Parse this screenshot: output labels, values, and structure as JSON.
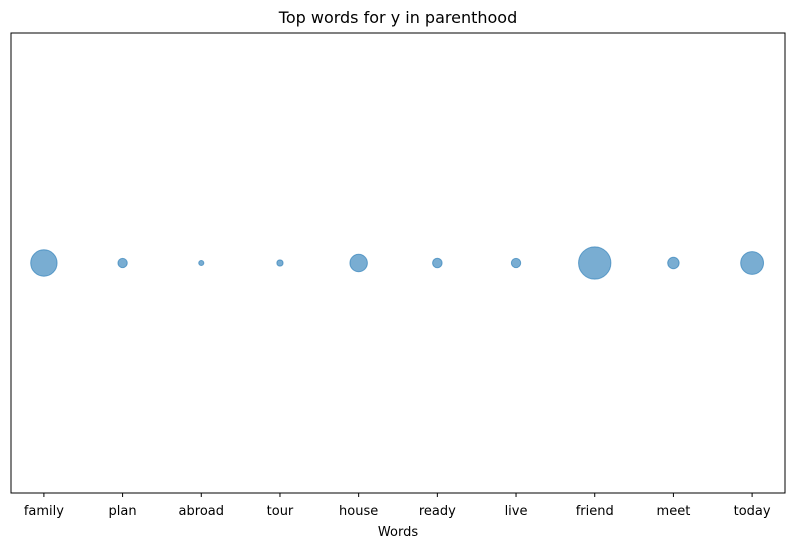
{
  "chart_data": {
    "type": "scatter",
    "title": "Top words for y in parenthood",
    "xlabel": "Words",
    "ylabel": "",
    "grid": false,
    "categories": [
      "family",
      "plan",
      "abroad",
      "tour",
      "house",
      "ready",
      "live",
      "friend",
      "meet",
      "today"
    ],
    "values": [
      0,
      0,
      0,
      0,
      0,
      0,
      0,
      0,
      0,
      0
    ],
    "sizes": [
      16,
      2,
      0.6,
      0.9,
      7,
      2.1,
      2,
      24,
      3,
      12
    ],
    "y_ticks_shown": false,
    "colors": {
      "marker": "#1f77b4",
      "marker_alpha": 0.6
    }
  }
}
